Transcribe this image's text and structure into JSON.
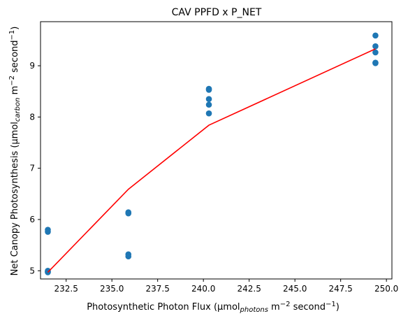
{
  "chart_data": {
    "type": "scatter",
    "title": "CAV PPFD x P_NET",
    "xlabel": {
      "prefix": "Photosynthetic Photon Flux (μmol",
      "sub": "photons",
      "mid": " m",
      "sup": "−2",
      "suffix": " second",
      "sup2": "−1",
      "close": ")"
    },
    "ylabel": {
      "prefix": "Net Canopy Photosynthesis (μmol",
      "sub": "carbon",
      "mid": " m",
      "sup": "−2",
      "suffix": " second",
      "sup2": "−1",
      "close": ")"
    },
    "xlim": [
      231.1,
      250.3
    ],
    "ylim": [
      4.84,
      9.86
    ],
    "xticks": [
      232.5,
      235.0,
      237.5,
      240.0,
      242.5,
      245.0,
      247.5,
      250.0
    ],
    "xtick_labels": [
      "232.5",
      "235.0",
      "237.5",
      "240.0",
      "242.5",
      "245.0",
      "247.5",
      "250.0"
    ],
    "yticks": [
      5,
      6,
      7,
      8,
      9
    ],
    "ytick_labels": [
      "5",
      "6",
      "7",
      "8",
      "9"
    ],
    "grid": false,
    "series": [
      {
        "type": "scatter",
        "color": "#1f77b4",
        "points": [
          [
            231.5,
            5.8
          ],
          [
            231.5,
            5.76
          ],
          [
            231.5,
            5.0
          ],
          [
            231.5,
            4.98
          ],
          [
            231.5,
            4.97
          ],
          [
            235.9,
            6.14
          ],
          [
            235.9,
            6.12
          ],
          [
            235.9,
            5.32
          ],
          [
            235.9,
            5.28
          ],
          [
            240.3,
            8.55
          ],
          [
            240.3,
            8.53
          ],
          [
            240.3,
            8.35
          ],
          [
            240.3,
            8.24
          ],
          [
            240.3,
            8.07
          ],
          [
            249.4,
            9.59
          ],
          [
            249.4,
            9.38
          ],
          [
            249.4,
            9.26
          ],
          [
            249.4,
            9.06
          ],
          [
            249.4,
            9.05
          ]
        ]
      },
      {
        "type": "line",
        "color": "#ff0000",
        "points": [
          [
            231.5,
            4.97
          ],
          [
            235.9,
            6.59
          ],
          [
            240.3,
            7.84
          ],
          [
            249.4,
            9.33
          ]
        ]
      }
    ]
  }
}
